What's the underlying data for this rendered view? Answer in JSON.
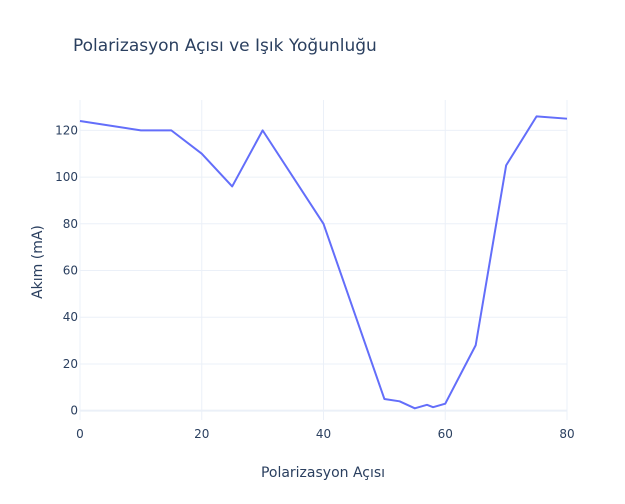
{
  "chart_data": {
    "type": "line",
    "title": "Polarizasyon Açısı ve Işık Yoğunluğu",
    "xlabel": "Polarizasyon Açısı",
    "ylabel": "Akım (mA)",
    "xlim": [
      0,
      80
    ],
    "ylim": [
      -4,
      133
    ],
    "xticks": [
      0,
      20,
      40,
      60,
      80
    ],
    "yticks": [
      0,
      20,
      40,
      60,
      80,
      100,
      120
    ],
    "grid": true,
    "line_color": "#636efa",
    "series": [
      {
        "x": [
          0,
          10,
          15,
          20,
          25,
          30,
          40,
          50,
          52.5,
          55,
          57,
          58,
          60,
          65,
          70,
          75,
          80
        ],
        "y": [
          124,
          120,
          120,
          110,
          96,
          120,
          80,
          5,
          4,
          1,
          2.5,
          1.5,
          3,
          28,
          105,
          126,
          125
        ]
      }
    ]
  }
}
